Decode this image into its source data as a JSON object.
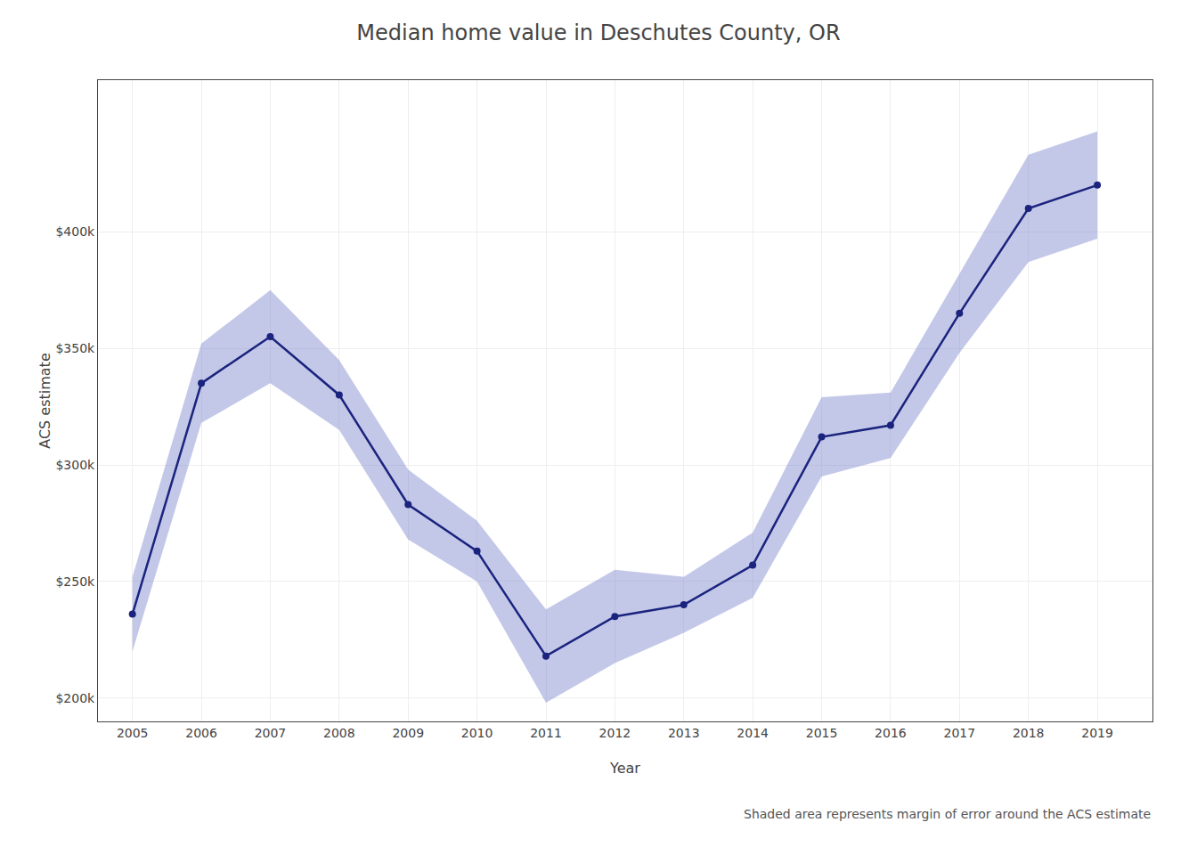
{
  "chart_data": {
    "type": "line",
    "title": "Median home value in Deschutes County, OR",
    "xlabel": "Year",
    "ylabel": "ACS estimate",
    "annotations": [
      "Shaded area represents margin of error around the ACS estimate"
    ],
    "x": [
      2005,
      2006,
      2007,
      2008,
      2009,
      2010,
      2011,
      2012,
      2013,
      2014,
      2015,
      2016,
      2017,
      2018,
      2019
    ],
    "series": [
      {
        "type": "band",
        "color": "#7986cb",
        "lower": [
          220000,
          318000,
          335000,
          315000,
          268000,
          250000,
          198000,
          215000,
          228000,
          243000,
          295000,
          303000,
          348000,
          387000,
          397000
        ],
        "upper": [
          252000,
          352000,
          375000,
          345000,
          298000,
          276000,
          238000,
          255000,
          252000,
          271000,
          329000,
          331000,
          382000,
          433000,
          443000
        ]
      },
      {
        "type": "line",
        "color": "#1a237e",
        "marker": "circle",
        "values": [
          236000,
          335000,
          355000,
          330000,
          283000,
          263000,
          218000,
          235000,
          240000,
          257000,
          312000,
          317000,
          365000,
          410000,
          420000
        ]
      }
    ],
    "xlim": [
      2004.5,
      2019.8
    ],
    "xticks": [
      2005,
      2006,
      2007,
      2008,
      2009,
      2010,
      2011,
      2012,
      2013,
      2014,
      2015,
      2016,
      2017,
      2018,
      2019
    ],
    "ylim": [
      190000,
      465000
    ],
    "yticks": [
      {
        "value": 200000,
        "label": "$200k"
      },
      {
        "value": 250000,
        "label": "$250k"
      },
      {
        "value": 300000,
        "label": "$300k"
      },
      {
        "value": 350000,
        "label": "$350k"
      },
      {
        "value": 400000,
        "label": "$400k"
      }
    ],
    "grid": true
  }
}
